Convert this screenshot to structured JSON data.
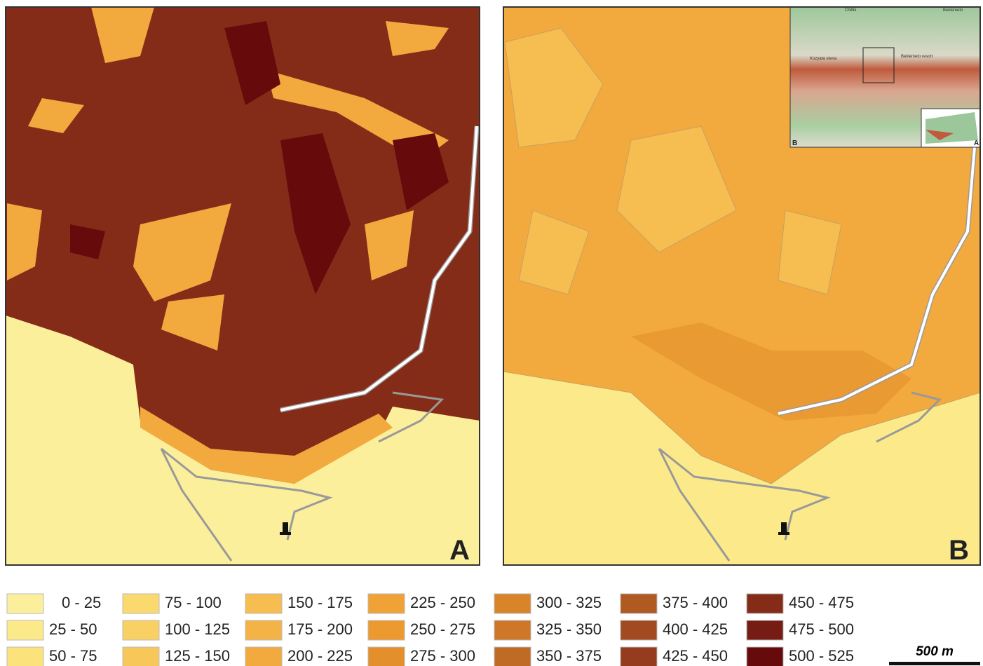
{
  "panels": [
    {
      "label": "A"
    },
    {
      "label": "B"
    }
  ],
  "inset": {
    "labels": [
      "B",
      "A"
    ],
    "places": [
      "Chiflik",
      "Beklemeto",
      "Kozyata stena",
      "Beklemeto resort"
    ]
  },
  "legend": [
    {
      "label": "0 - 25",
      "color": "#fbef9c"
    },
    {
      "label": "25 - 50",
      "color": "#fbe98a"
    },
    {
      "label": "50 - 75",
      "color": "#fbe27a"
    },
    {
      "label": "75 - 100",
      "color": "#fad96e"
    },
    {
      "label": "100 - 125",
      "color": "#f9d064"
    },
    {
      "label": "125 - 150",
      "color": "#f8c75a"
    },
    {
      "label": "150 - 175",
      "color": "#f6bd50"
    },
    {
      "label": "175 - 200",
      "color": "#f4b347"
    },
    {
      "label": "200 - 225",
      "color": "#f2aa3e"
    },
    {
      "label": "225 - 250",
      "color": "#f0a236"
    },
    {
      "label": "250 - 275",
      "color": "#ec9a30"
    },
    {
      "label": "275 - 300",
      "color": "#e3902c"
    },
    {
      "label": "300 - 325",
      "color": "#d98429"
    },
    {
      "label": "325 - 350",
      "color": "#cd7727"
    },
    {
      "label": "350 - 375",
      "color": "#bf6a25"
    },
    {
      "label": "375 - 400",
      "color": "#b05a22"
    },
    {
      "label": "400 - 425",
      "color": "#a24a20"
    },
    {
      "label": "425 - 450",
      "color": "#943c1d"
    },
    {
      "label": "450 - 475",
      "color": "#852c19"
    },
    {
      "label": "475 - 500",
      "color": "#761c14"
    },
    {
      "label": "500 - 525",
      "color": "#660a0c"
    }
  ],
  "scale": {
    "label": "500 m"
  }
}
